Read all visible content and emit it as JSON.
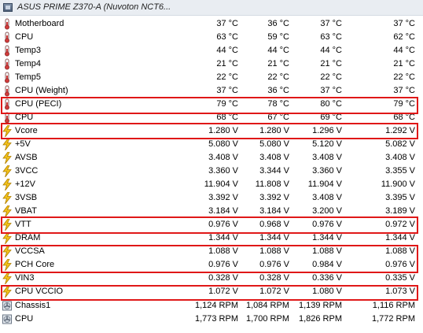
{
  "header": {
    "title": "ASUS PRIME Z370-A (Nuvoton NCT6..."
  },
  "rows": [
    {
      "label": "Motherboard",
      "icon": "thermometer-icon",
      "values": [
        "37 °C",
        "36 °C",
        "37 °C",
        "37 °C"
      ]
    },
    {
      "label": "CPU",
      "icon": "thermometer-icon",
      "values": [
        "63 °C",
        "59 °C",
        "63 °C",
        "62 °C"
      ]
    },
    {
      "label": "Temp3",
      "icon": "thermometer-icon",
      "values": [
        "44 °C",
        "44 °C",
        "44 °C",
        "44 °C"
      ]
    },
    {
      "label": "Temp4",
      "icon": "thermometer-icon",
      "values": [
        "21 °C",
        "21 °C",
        "21 °C",
        "21 °C"
      ]
    },
    {
      "label": "Temp5",
      "icon": "thermometer-icon",
      "values": [
        "22 °C",
        "22 °C",
        "22 °C",
        "22 °C"
      ]
    },
    {
      "label": "CPU (Weight)",
      "icon": "thermometer-icon",
      "values": [
        "37 °C",
        "36 °C",
        "37 °C",
        "37 °C"
      ]
    },
    {
      "label": "CPU (PECI)",
      "icon": "thermometer-icon",
      "values": [
        "79 °C",
        "78 °C",
        "80 °C",
        "79 °C"
      ]
    },
    {
      "label": "CPU",
      "icon": "thermometer-icon",
      "values": [
        "68 °C",
        "67 °C",
        "69 °C",
        "68 °C"
      ]
    },
    {
      "label": "Vcore",
      "icon": "voltage-icon",
      "values": [
        "1.280 V",
        "1.280 V",
        "1.296 V",
        "1.292 V"
      ]
    },
    {
      "label": "+5V",
      "icon": "voltage-icon",
      "values": [
        "5.080 V",
        "5.080 V",
        "5.120 V",
        "5.082 V"
      ]
    },
    {
      "label": "AVSB",
      "icon": "voltage-icon",
      "values": [
        "3.408 V",
        "3.408 V",
        "3.408 V",
        "3.408 V"
      ]
    },
    {
      "label": "3VCC",
      "icon": "voltage-icon",
      "values": [
        "3.360 V",
        "3.344 V",
        "3.360 V",
        "3.355 V"
      ]
    },
    {
      "label": "+12V",
      "icon": "voltage-icon",
      "values": [
        "11.904 V",
        "11.808 V",
        "11.904 V",
        "11.900 V"
      ]
    },
    {
      "label": "3VSB",
      "icon": "voltage-icon",
      "values": [
        "3.392 V",
        "3.392 V",
        "3.408 V",
        "3.395 V"
      ]
    },
    {
      "label": "VBAT",
      "icon": "voltage-icon",
      "values": [
        "3.184 V",
        "3.184 V",
        "3.200 V",
        "3.189 V"
      ]
    },
    {
      "label": "VTT",
      "icon": "voltage-icon",
      "values": [
        "0.976 V",
        "0.968 V",
        "0.976 V",
        "0.972 V"
      ]
    },
    {
      "label": "DRAM",
      "icon": "voltage-icon",
      "values": [
        "1.344 V",
        "1.344 V",
        "1.344 V",
        "1.344 V"
      ]
    },
    {
      "label": "VCCSA",
      "icon": "voltage-icon",
      "values": [
        "1.088 V",
        "1.088 V",
        "1.088 V",
        "1.088 V"
      ]
    },
    {
      "label": "PCH Core",
      "icon": "voltage-icon",
      "values": [
        "0.976 V",
        "0.976 V",
        "0.984 V",
        "0.976 V"
      ]
    },
    {
      "label": "VIN3",
      "icon": "voltage-icon",
      "values": [
        "0.328 V",
        "0.328 V",
        "0.336 V",
        "0.335 V"
      ]
    },
    {
      "label": "CPU VCCIO",
      "icon": "voltage-icon",
      "values": [
        "1.072 V",
        "1.072 V",
        "1.080 V",
        "1.073 V"
      ]
    },
    {
      "label": "Chassis1",
      "icon": "fan-icon",
      "values": [
        "1,124 RPM",
        "1,084 RPM",
        "1,139 RPM",
        "1,116 RPM"
      ]
    },
    {
      "label": "CPU",
      "icon": "fan-icon",
      "values": [
        "1,773 RPM",
        "1,700 RPM",
        "1,826 RPM",
        "1,772 RPM"
      ]
    }
  ],
  "highlight_color": "#e01818"
}
